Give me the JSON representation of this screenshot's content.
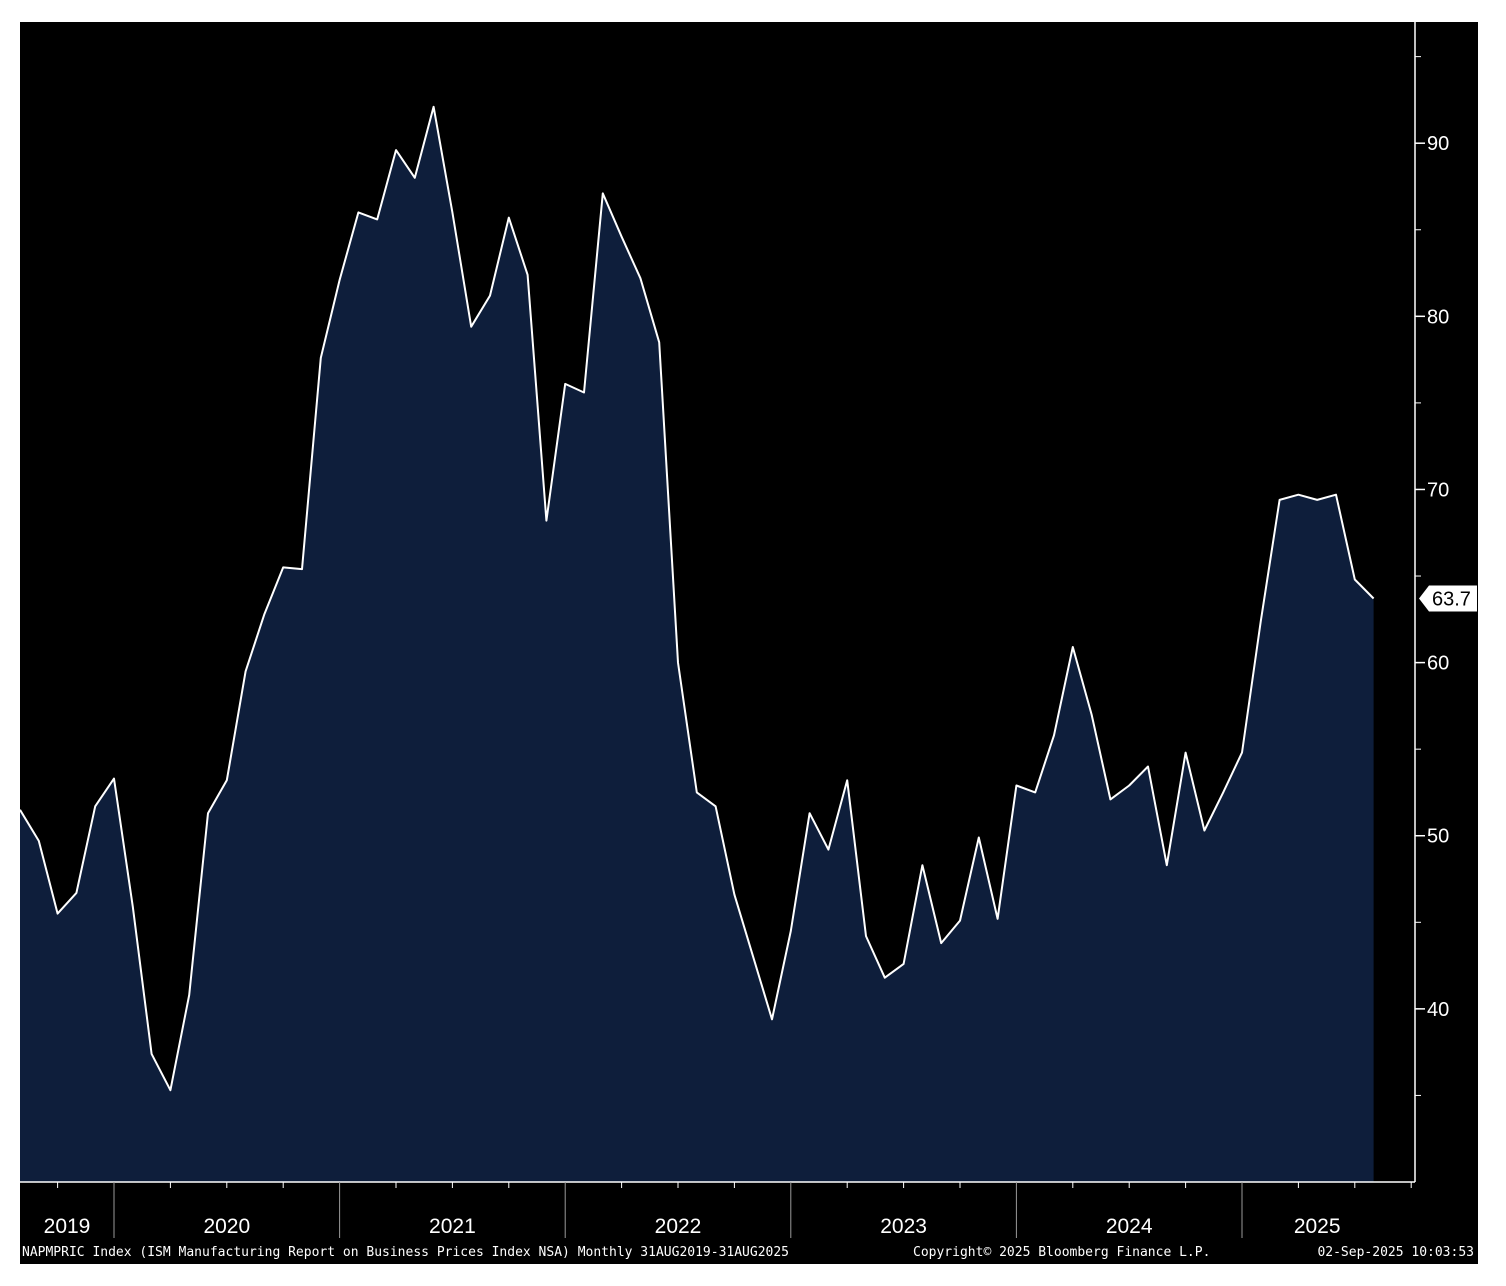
{
  "chart_data": {
    "type": "area",
    "x_start": "2019-08",
    "x_end": "2025-08",
    "frequency": "monthly",
    "values": [
      51.5,
      49.7,
      45.5,
      46.7,
      51.7,
      53.3,
      45.9,
      37.4,
      35.3,
      40.8,
      51.3,
      53.2,
      59.5,
      62.8,
      65.5,
      65.4,
      77.6,
      82.1,
      86.0,
      85.6,
      89.6,
      88.0,
      92.1,
      86.0,
      79.4,
      81.2,
      85.7,
      82.4,
      68.2,
      76.1,
      75.6,
      87.1,
      84.6,
      82.2,
      78.5,
      60.0,
      52.5,
      51.7,
      46.6,
      43.0,
      39.4,
      44.5,
      51.3,
      49.2,
      53.2,
      44.2,
      41.8,
      42.6,
      48.3,
      43.8,
      45.1,
      49.9,
      45.2,
      52.9,
      52.5,
      55.8,
      60.9,
      57.0,
      52.1,
      52.9,
      54.0,
      48.3,
      54.8,
      50.3,
      52.5,
      54.8,
      62.4,
      69.4,
      69.7,
      69.4,
      69.7,
      64.8,
      63.7
    ],
    "series": [
      {
        "values_ref": "values",
        "color": "#ffffff",
        "fill": "#0e1e3b"
      }
    ],
    "x_tick_labels": [
      "2019",
      "2020",
      "2021",
      "2022",
      "2023",
      "2024",
      "2025"
    ],
    "y_tick_labels": [
      "90",
      "80",
      "70",
      "60",
      "50",
      "40"
    ],
    "ylim": [
      30,
      97
    ],
    "y_axis_side": "right",
    "last_value_label": "63.7",
    "grid": false,
    "background": "#000000"
  },
  "footer": {
    "left": "NAPMPRIC Index (ISM Manufacturing Report on Business Prices Index NSA)  Monthly 31AUG2019-31AUG2025",
    "center": "Copyright© 2025 Bloomberg Finance L.P.",
    "right": "02-Sep-2025 10:03:53"
  }
}
